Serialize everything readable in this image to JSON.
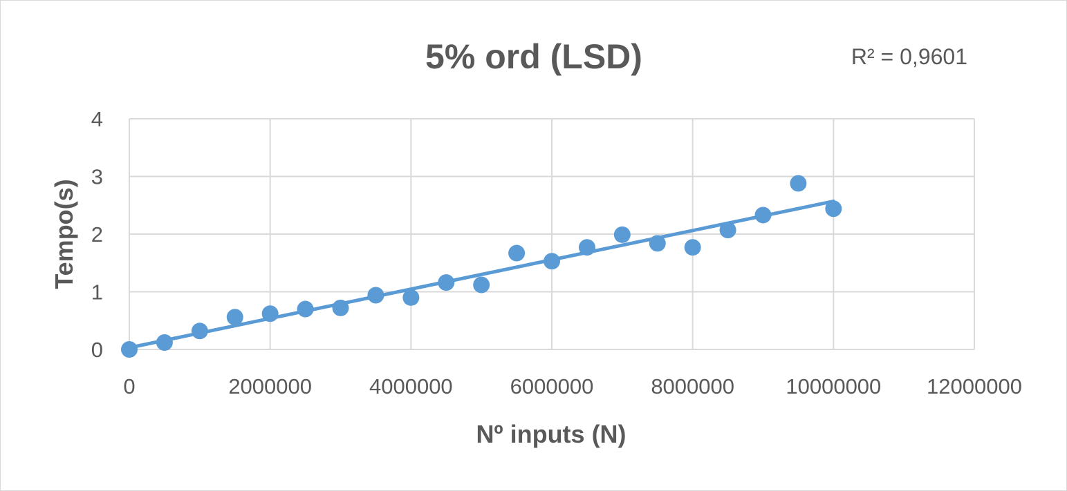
{
  "chart_data": {
    "type": "scatter",
    "title": "5% ord (LSD)",
    "xlabel": "Nº inputs (N)",
    "ylabel": "Tempo(s)",
    "xlim": [
      0,
      12000000
    ],
    "ylim": [
      0,
      4
    ],
    "x_ticks": [
      "0",
      "2000000",
      "4000000",
      "6000000",
      "8000000",
      "10000000",
      "12000000"
    ],
    "y_ticks": [
      "0",
      "1",
      "2",
      "3",
      "4"
    ],
    "grid": true,
    "legend": "none",
    "series": [
      {
        "x": [
          0,
          500000,
          1000000,
          1500000,
          2000000,
          2500000,
          3000000,
          3500000,
          4000000,
          4500000,
          5000000,
          5500000,
          6000000,
          6500000,
          7000000,
          7500000,
          8000000,
          8500000,
          9000000,
          9500000,
          10000000
        ],
        "y": [
          0.0,
          0.12,
          0.32,
          0.56,
          0.62,
          0.7,
          0.72,
          0.94,
          0.9,
          1.16,
          1.12,
          1.67,
          1.53,
          1.77,
          1.99,
          1.84,
          1.77,
          2.07,
          2.33,
          2.88,
          2.44
        ],
        "color": "#5b9bd5"
      }
    ],
    "trendline": {
      "type": "linear",
      "x_range": [
        0,
        10000000
      ],
      "y_range": [
        0.03,
        2.57
      ],
      "r2_label": "R² = 0,9601",
      "color": "#5b9bd5"
    }
  }
}
